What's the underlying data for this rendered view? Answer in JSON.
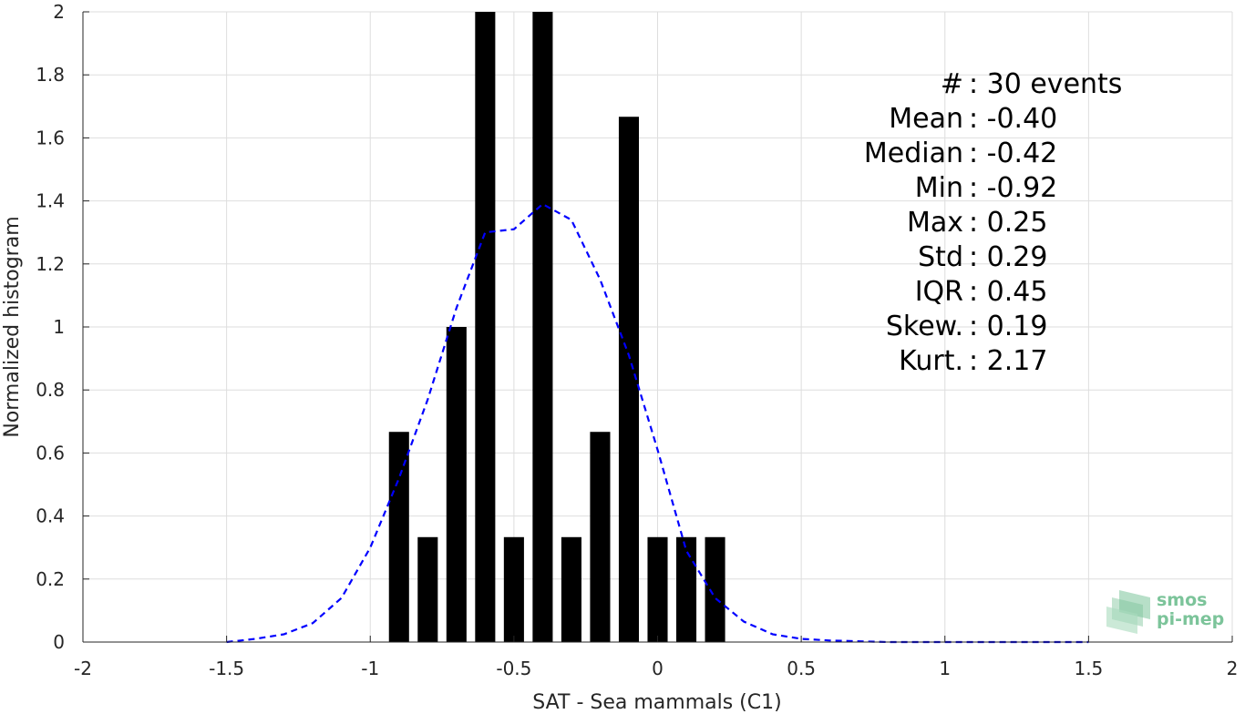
{
  "chart_data": {
    "type": "bar",
    "xlabel": "SAT - Sea mammals (C1)",
    "ylabel": "Normalized histogram",
    "xlim": [
      -2,
      2
    ],
    "ylim": [
      0,
      2
    ],
    "xticks": [
      -2,
      -1.5,
      -1,
      -0.5,
      0,
      0.5,
      1,
      1.5,
      2
    ],
    "xtick_labels": [
      "-2",
      "-1.5",
      "-1",
      "-0.5",
      "0",
      "0.5",
      "1",
      "1.5",
      "2"
    ],
    "yticks": [
      0,
      0.2,
      0.4,
      0.6,
      0.8,
      1,
      1.2,
      1.4,
      1.6,
      1.8,
      2
    ],
    "ytick_labels": [
      "0",
      "0.2",
      "0.4",
      "0.6",
      "0.8",
      "1",
      "1.2",
      "1.4",
      "1.6",
      "1.8",
      "2"
    ],
    "grid": true,
    "bar_color": "#000000",
    "bar_width": 0.07,
    "bars": [
      {
        "x": -0.9,
        "y": 0.667
      },
      {
        "x": -0.8,
        "y": 0.333
      },
      {
        "x": -0.7,
        "y": 1.0
      },
      {
        "x": -0.6,
        "y": 2.0
      },
      {
        "x": -0.5,
        "y": 0.333
      },
      {
        "x": -0.4,
        "y": 2.0
      },
      {
        "x": -0.3,
        "y": 0.333
      },
      {
        "x": -0.2,
        "y": 0.667
      },
      {
        "x": -0.1,
        "y": 1.667
      },
      {
        "x": 0.0,
        "y": 0.333
      },
      {
        "x": 0.1,
        "y": 0.333
      },
      {
        "x": 0.2,
        "y": 0.333
      }
    ],
    "fit_curve": {
      "style": "dashed",
      "color": "#0000ff",
      "x": [
        -1.5,
        -1.4,
        -1.3,
        -1.2,
        -1.1,
        -1.0,
        -0.9,
        -0.8,
        -0.7,
        -0.6,
        -0.5,
        -0.4,
        -0.3,
        -0.2,
        -0.1,
        0.0,
        0.1,
        0.2,
        0.3,
        0.4,
        0.5,
        0.6,
        0.8,
        1.0,
        1.2,
        1.5
      ],
      "y": [
        0.0,
        0.01,
        0.025,
        0.06,
        0.14,
        0.3,
        0.52,
        0.77,
        1.06,
        1.3,
        1.31,
        1.39,
        1.34,
        1.15,
        0.91,
        0.61,
        0.29,
        0.14,
        0.065,
        0.025,
        0.01,
        0.005,
        0.0,
        0.0,
        0.0,
        0.0
      ]
    },
    "stats": [
      {
        "label": "#  ",
        "value": "30 events"
      },
      {
        "label": "Mean",
        "value": "-0.40"
      },
      {
        "label": "Median",
        "value": "-0.42"
      },
      {
        "label": "Min",
        "value": "-0.92"
      },
      {
        "label": "Max",
        "value": "0.25"
      },
      {
        "label": "Std",
        "value": "0.29"
      },
      {
        "label": "IQR",
        "value": "0.45"
      },
      {
        "label": "Skew.",
        "value": "0.19"
      },
      {
        "label": "Kurt.",
        "value": "2.17"
      }
    ]
  },
  "logo": {
    "line1": "smos",
    "line2": "pi-mep",
    "color": "#7cc49a"
  }
}
